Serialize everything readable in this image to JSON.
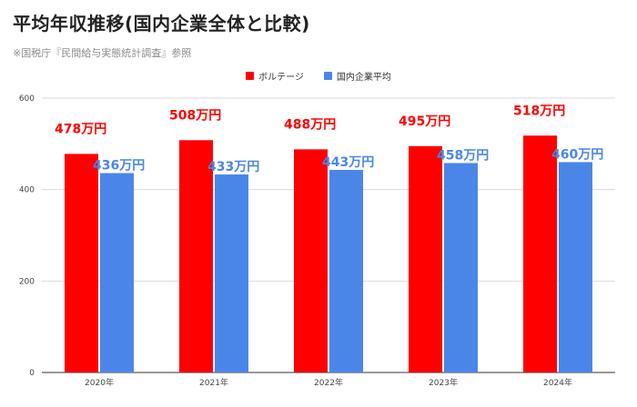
{
  "header": {
    "title": "平均年収推移(国内企業全体と比較)",
    "subtitle": "※国税庁『民間給与実態統計調査』参照"
  },
  "colors": {
    "series_1": "#ff0000",
    "series_2": "#4a86e8",
    "grid": "#d9d9d9",
    "axis_text": "#444444"
  },
  "chart_data": {
    "type": "bar",
    "categories": [
      "2020年",
      "2021年",
      "2022年",
      "2023年",
      "2024年"
    ],
    "series": [
      {
        "name": "ボルテージ",
        "values": [
          478,
          508,
          488,
          495,
          518
        ],
        "labels": [
          "478万円",
          "508万円",
          "488万円",
          "495万円",
          "518万円"
        ]
      },
      {
        "name": "国内企業平均",
        "values": [
          436,
          433,
          443,
          458,
          460
        ],
        "labels": [
          "436万円",
          "433万円",
          "443万円",
          "458万円",
          "460万円"
        ]
      }
    ],
    "yticks": [
      0,
      200,
      400,
      600
    ],
    "ylim": [
      0,
      600
    ],
    "grid": true,
    "legend_position": "top-center",
    "title": "",
    "xlabel": "",
    "ylabel": ""
  }
}
